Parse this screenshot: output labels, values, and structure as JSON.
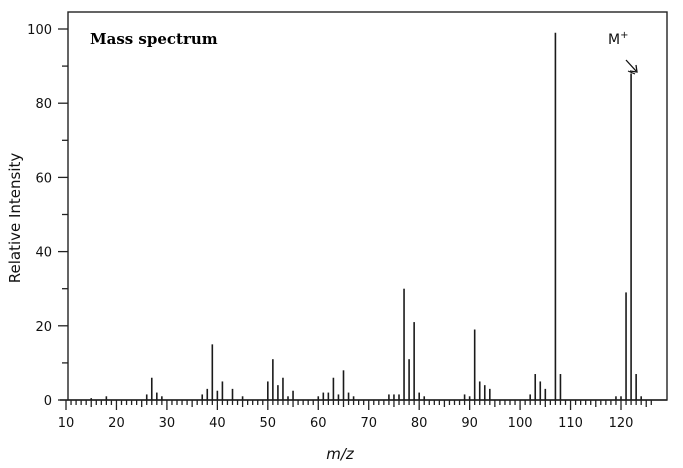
{
  "chart_data": {
    "type": "bar",
    "title": "Mass spectrum",
    "xlabel": "m/z",
    "ylabel": "Relative Intensity",
    "xlim": [
      10,
      127
    ],
    "ylim": [
      0,
      100
    ],
    "x_ticks": [
      10,
      20,
      30,
      40,
      50,
      60,
      70,
      80,
      90,
      100,
      110,
      120
    ],
    "y_ticks": [
      0,
      20,
      40,
      60,
      80,
      100
    ],
    "grid": false,
    "legend": null,
    "annotations": [
      {
        "text": "M+",
        "target_mz": 122,
        "description": "molecular ion arrow"
      }
    ],
    "peaks": [
      {
        "mz": 15,
        "intensity": 0.5
      },
      {
        "mz": 18,
        "intensity": 1
      },
      {
        "mz": 26,
        "intensity": 1.5
      },
      {
        "mz": 27,
        "intensity": 6
      },
      {
        "mz": 28,
        "intensity": 2
      },
      {
        "mz": 29,
        "intensity": 1
      },
      {
        "mz": 37,
        "intensity": 1.5
      },
      {
        "mz": 38,
        "intensity": 3
      },
      {
        "mz": 39,
        "intensity": 15
      },
      {
        "mz": 40,
        "intensity": 2.5
      },
      {
        "mz": 41,
        "intensity": 5
      },
      {
        "mz": 43,
        "intensity": 3
      },
      {
        "mz": 45,
        "intensity": 1
      },
      {
        "mz": 50,
        "intensity": 5
      },
      {
        "mz": 51,
        "intensity": 11
      },
      {
        "mz": 52,
        "intensity": 4
      },
      {
        "mz": 53,
        "intensity": 6
      },
      {
        "mz": 54,
        "intensity": 1
      },
      {
        "mz": 55,
        "intensity": 2.5
      },
      {
        "mz": 60,
        "intensity": 1
      },
      {
        "mz": 61,
        "intensity": 2
      },
      {
        "mz": 62,
        "intensity": 2
      },
      {
        "mz": 63,
        "intensity": 6
      },
      {
        "mz": 64,
        "intensity": 1.5
      },
      {
        "mz": 65,
        "intensity": 8
      },
      {
        "mz": 66,
        "intensity": 2
      },
      {
        "mz": 67,
        "intensity": 1
      },
      {
        "mz": 74,
        "intensity": 1.5
      },
      {
        "mz": 75,
        "intensity": 1.5
      },
      {
        "mz": 76,
        "intensity": 1.5
      },
      {
        "mz": 77,
        "intensity": 30
      },
      {
        "mz": 78,
        "intensity": 11
      },
      {
        "mz": 79,
        "intensity": 21
      },
      {
        "mz": 80,
        "intensity": 2
      },
      {
        "mz": 81,
        "intensity": 1
      },
      {
        "mz": 89,
        "intensity": 1.5
      },
      {
        "mz": 90,
        "intensity": 1
      },
      {
        "mz": 91,
        "intensity": 19
      },
      {
        "mz": 92,
        "intensity": 5
      },
      {
        "mz": 93,
        "intensity": 4
      },
      {
        "mz": 94,
        "intensity": 3
      },
      {
        "mz": 102,
        "intensity": 1.5
      },
      {
        "mz": 103,
        "intensity": 7
      },
      {
        "mz": 104,
        "intensity": 5
      },
      {
        "mz": 105,
        "intensity": 3
      },
      {
        "mz": 107,
        "intensity": 99
      },
      {
        "mz": 108,
        "intensity": 7
      },
      {
        "mz": 119,
        "intensity": 1
      },
      {
        "mz": 120,
        "intensity": 1
      },
      {
        "mz": 121,
        "intensity": 29
      },
      {
        "mz": 122,
        "intensity": 88
      },
      {
        "mz": 123,
        "intensity": 7
      },
      {
        "mz": 124,
        "intensity": 1
      }
    ]
  }
}
